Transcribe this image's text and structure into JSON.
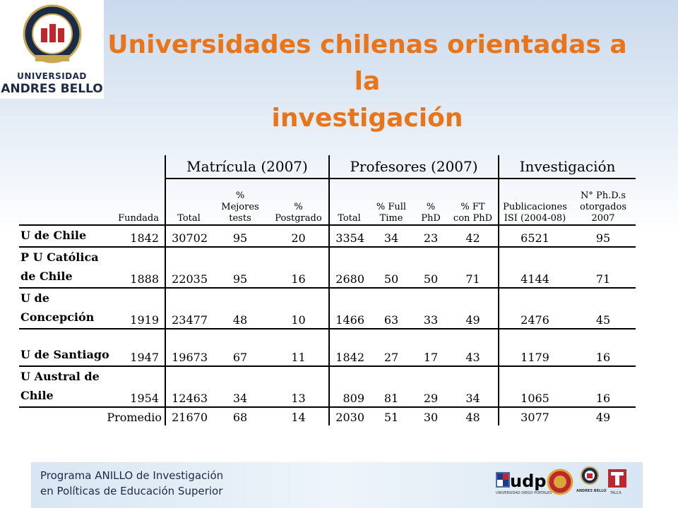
{
  "logo": {
    "line1": "UNIVERSIDAD",
    "line2": "ANDRES BELLO"
  },
  "title": {
    "line1": "Universidades chilenas orientadas a la",
    "line2": "investigación"
  },
  "table": {
    "groups": {
      "matricula": "Matrícula (2007)",
      "profesores": "Profesores (2007)",
      "investigacion": "Investigación"
    },
    "headers": {
      "fundada": "Fundada",
      "mat_total": "Total",
      "mejores": [
        "%",
        "Mejores",
        "tests"
      ],
      "postgrado": [
        "%",
        "Postgrado"
      ],
      "prof_total": "Total",
      "full_time": [
        "% Full",
        "Time"
      ],
      "phd": [
        "%",
        "PhD"
      ],
      "ft_phd": [
        "% FT",
        "con PhD"
      ],
      "publicaciones": [
        "Publicaciones",
        "ISI (2004-08)"
      ],
      "phds": [
        "N° Ph.D.s",
        "otorgados",
        "2007"
      ]
    },
    "rows": [
      {
        "name": [
          "U de Chile"
        ],
        "values": [
          "1842",
          "30702",
          "95",
          "20",
          "3354",
          "34",
          "23",
          "42",
          "6521",
          "95"
        ]
      },
      {
        "name": [
          "P U Católica",
          "de Chile"
        ],
        "values": [
          "1888",
          "22035",
          "95",
          "16",
          "2680",
          "50",
          "50",
          "71",
          "4144",
          "71"
        ]
      },
      {
        "name": [
          "U de",
          "Concepción"
        ],
        "values": [
          "1919",
          "23477",
          "48",
          "10",
          "1466",
          "63",
          "33",
          "49",
          "2476",
          "45"
        ]
      },
      {
        "name": [
          "",
          "U de Santiago"
        ],
        "values": [
          "1947",
          "19673",
          "67",
          "11",
          "1842",
          "27",
          "17",
          "43",
          "1179",
          "16"
        ]
      },
      {
        "name": [
          "U Austral de",
          "Chile"
        ],
        "values": [
          "1954",
          "12463",
          "34",
          "13",
          "809",
          "81",
          "29",
          "34",
          "1065",
          "16"
        ]
      }
    ],
    "average": {
      "label": "Promedio",
      "values": [
        "21670",
        "68",
        "14",
        "2030",
        "51",
        "30",
        "48",
        "3077",
        "49"
      ]
    }
  },
  "footer": {
    "line1": "Programa ANILLO de Investigación",
    "line2": "en Políticas de Educación Superior",
    "udp": "udp",
    "udp_caption": "UNIVERSIDAD DIEGO PORTALES",
    "unab_caption": "ANDRES BELLO",
    "talca_caption": "TALCA"
  }
}
